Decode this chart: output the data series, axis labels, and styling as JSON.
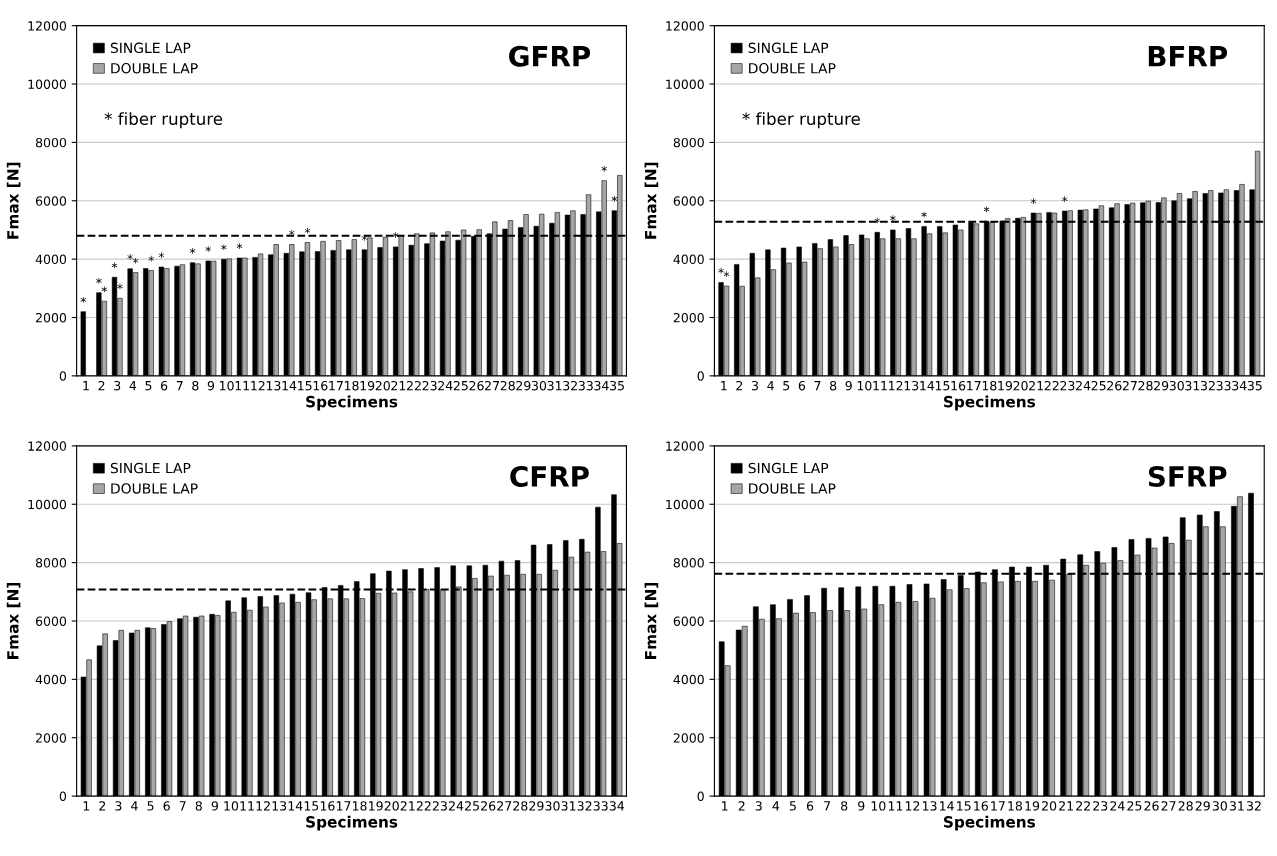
{
  "chart_data": [
    {
      "type": "bar",
      "title": "GFRP",
      "xlabel": "Specimens",
      "ylabel": "Fmax [N]",
      "categories": [
        "1",
        "2",
        "3",
        "4",
        "5",
        "6",
        "7",
        "8",
        "9",
        "10",
        "11",
        "12",
        "13",
        "14",
        "15",
        "16",
        "17",
        "18",
        "19",
        "20",
        "21",
        "22",
        "23",
        "24",
        "25",
        "26",
        "27",
        "28",
        "29",
        "30",
        "31",
        "32",
        "33",
        "34",
        "35"
      ],
      "series": [
        {
          "name": "SINGLE LAP",
          "color": "#000000",
          "values": [
            2200,
            2850,
            3380,
            3670,
            3680,
            3730,
            3760,
            3880,
            3940,
            4000,
            4040,
            4060,
            4150,
            4200,
            4250,
            4260,
            4300,
            4320,
            4320,
            4400,
            4420,
            4480,
            4530,
            4620,
            4650,
            4780,
            4870,
            5030,
            5080,
            5130,
            5230,
            5510,
            5530,
            5620,
            5660
          ]
        },
        {
          "name": "DOUBLE LAP",
          "color": "#a6a6a6",
          "values": [
            null,
            2560,
            2660,
            3540,
            3610,
            3680,
            3810,
            3840,
            3930,
            4010,
            4040,
            4180,
            4500,
            4500,
            4570,
            4610,
            4640,
            4670,
            4730,
            4750,
            4810,
            4870,
            4900,
            4940,
            5000,
            5010,
            5280,
            5320,
            5530,
            5540,
            5600,
            5660,
            6210,
            6690,
            6870
          ]
        }
      ],
      "ylim": [
        0,
        12000
      ],
      "yticks": [
        0,
        2000,
        4000,
        6000,
        8000,
        10000,
        12000
      ],
      "grid": "y",
      "legend": "top left",
      "ref_lines": [
        {
          "axis": "y",
          "value": 4800,
          "line_style": "dashed",
          "color": "#000000"
        }
      ],
      "annotations": [
        "* fiber rupture",
        {
          "text": "*",
          "x": "1",
          "y": 2200
        },
        {
          "text": "*",
          "x": "2",
          "y": 2850
        },
        {
          "text": "*",
          "x": "3",
          "y": 3380
        },
        {
          "text": "*",
          "x": "4",
          "y": 3670
        },
        {
          "text": "*",
          "x": "6",
          "y": 3730
        },
        {
          "text": "*",
          "x": "8",
          "y": 3880
        },
        {
          "text": "*",
          "x": "9",
          "y": 3940
        },
        {
          "text": "*",
          "x": "10",
          "y": 4000
        },
        {
          "text": "*",
          "x": "11",
          "y": 4040
        },
        {
          "text": "*",
          "x": "19",
          "y": 4320
        },
        {
          "text": "*",
          "x": "21",
          "y": 4420
        },
        {
          "text": "*",
          "x": "35",
          "y": 5660
        },
        {
          "text": "*",
          "x": "2",
          "y": 2560
        },
        {
          "text": "*",
          "x": "3",
          "y": 2660
        },
        {
          "text": "*",
          "x": "4",
          "y": 3540
        },
        {
          "text": "*",
          "x": "5",
          "y": 3610
        },
        {
          "text": "*",
          "x": "14",
          "y": 4500
        },
        {
          "text": "*",
          "x": "15",
          "y": 4570
        },
        {
          "text": "*",
          "x": "34",
          "y": 6690
        }
      ]
    },
    {
      "type": "bar",
      "title": "BFRP",
      "xlabel": "Specimens",
      "ylabel": "Fmax [N]",
      "categories": [
        "1",
        "2",
        "3",
        "4",
        "5",
        "6",
        "7",
        "8",
        "9",
        "10",
        "11",
        "12",
        "13",
        "14",
        "15",
        "16",
        "17",
        "18",
        "19",
        "20",
        "21",
        "22",
        "23",
        "24",
        "25",
        "26",
        "27",
        "28",
        "29",
        "30",
        "31",
        "32",
        "33",
        "34",
        "35"
      ],
      "series": [
        {
          "name": "SINGLE LAP",
          "color": "#000000",
          "values": [
            3200,
            3820,
            4200,
            4320,
            4380,
            4420,
            4540,
            4670,
            4810,
            4830,
            4920,
            5000,
            5050,
            5120,
            5120,
            5170,
            5250,
            5300,
            5310,
            5400,
            5580,
            5600,
            5650,
            5680,
            5720,
            5760,
            5870,
            5930,
            5940,
            6000,
            6070,
            6250,
            6270,
            6350,
            6380
          ]
        },
        {
          "name": "DOUBLE LAP",
          "color": "#a6a6a6",
          "values": [
            3080,
            3070,
            3360,
            3640,
            3870,
            3900,
            4360,
            4420,
            4500,
            4700,
            4700,
            4700,
            4700,
            4870,
            4900,
            5000,
            5210,
            5260,
            5390,
            5430,
            5570,
            5580,
            5660,
            5690,
            5830,
            5900,
            5920,
            5990,
            6100,
            6250,
            6320,
            6350,
            6380,
            6560,
            7700
          ]
        }
      ],
      "ylim": [
        0,
        12000
      ],
      "yticks": [
        0,
        2000,
        4000,
        6000,
        8000,
        10000,
        12000
      ],
      "grid": "y",
      "legend": "top left",
      "ref_lines": [
        {
          "axis": "y",
          "value": 5280,
          "line_style": "dashed",
          "color": "#000000"
        }
      ],
      "annotations": [
        "* fiber rupture",
        {
          "text": "*",
          "x": "1",
          "y": 3200
        },
        {
          "text": "*",
          "x": "11",
          "y": 4920
        },
        {
          "text": "*",
          "x": "12",
          "y": 5000
        },
        {
          "text": "*",
          "x": "14",
          "y": 5120
        },
        {
          "text": "*",
          "x": "18",
          "y": 5300
        },
        {
          "text": "*",
          "x": "21",
          "y": 5580
        },
        {
          "text": "*",
          "x": "23",
          "y": 5650
        },
        {
          "text": "*",
          "x": "1",
          "y": 3080
        }
      ]
    },
    {
      "type": "bar",
      "title": "CFRP",
      "xlabel": "Specimens",
      "ylabel": "Fmax [N]",
      "categories": [
        "1",
        "2",
        "3",
        "4",
        "5",
        "6",
        "7",
        "8",
        "9",
        "10",
        "11",
        "12",
        "13",
        "14",
        "15",
        "16",
        "17",
        "18",
        "19",
        "20",
        "21",
        "22",
        "23",
        "24",
        "25",
        "26",
        "27",
        "28",
        "29",
        "30",
        "31",
        "32",
        "33",
        "34"
      ],
      "series": [
        {
          "name": "SINGLE LAP",
          "color": "#000000",
          "values": [
            4080,
            5150,
            5330,
            5590,
            5770,
            5880,
            6080,
            6130,
            6230,
            6690,
            6800,
            6840,
            6870,
            6920,
            6970,
            7150,
            7220,
            7350,
            7620,
            7710,
            7760,
            7800,
            7830,
            7890,
            7890,
            7910,
            8050,
            8070,
            8600,
            8620,
            8760,
            8800,
            9900,
            10330
          ]
        },
        {
          "name": "DOUBLE LAP",
          "color": "#a6a6a6",
          "values": [
            4670,
            5560,
            5680,
            5680,
            5740,
            5980,
            6170,
            6170,
            6190,
            6300,
            6370,
            6480,
            6620,
            6640,
            6730,
            6760,
            6760,
            6770,
            6950,
            6960,
            7000,
            7080,
            7080,
            7170,
            7460,
            7540,
            7570,
            7600,
            7600,
            7740,
            8190,
            8360,
            8380,
            8660
          ]
        }
      ],
      "ylim": [
        0,
        12000
      ],
      "yticks": [
        0,
        2000,
        4000,
        6000,
        8000,
        10000,
        12000
      ],
      "grid": "y",
      "legend": "top left",
      "ref_lines": [
        {
          "axis": "y",
          "value": 7080,
          "line_style": "dashed",
          "color": "#000000"
        }
      ]
    },
    {
      "type": "bar",
      "title": "SFRP",
      "xlabel": "Specimens",
      "ylabel": "Fmax [N]",
      "categories": [
        "1",
        "2",
        "3",
        "4",
        "5",
        "6",
        "7",
        "8",
        "9",
        "10",
        "11",
        "12",
        "13",
        "14",
        "15",
        "16",
        "17",
        "18",
        "19",
        "20",
        "21",
        "22",
        "23",
        "24",
        "25",
        "26",
        "27",
        "28",
        "29",
        "30",
        "31",
        "32"
      ],
      "series": [
        {
          "name": "SINGLE LAP",
          "color": "#000000",
          "values": [
            5290,
            5690,
            6490,
            6560,
            6740,
            6870,
            7120,
            7140,
            7170,
            7190,
            7190,
            7250,
            7270,
            7420,
            7560,
            7680,
            7760,
            7850,
            7850,
            7910,
            8120,
            8270,
            8380,
            8520,
            8790,
            8830,
            8880,
            9540,
            9630,
            9750,
            9930,
            10380
          ]
        },
        {
          "name": "DOUBLE LAP",
          "color": "#a6a6a6",
          "values": [
            4470,
            5820,
            6060,
            6080,
            6270,
            6290,
            6360,
            6360,
            6410,
            6560,
            6640,
            6670,
            6780,
            7070,
            7110,
            7310,
            7340,
            7360,
            7360,
            7400,
            7600,
            7910,
            7980,
            8070,
            8260,
            8500,
            8660,
            8770,
            9230,
            9230,
            10260,
            null
          ]
        }
      ],
      "ylim": [
        0,
        12000
      ],
      "yticks": [
        0,
        2000,
        4000,
        6000,
        8000,
        10000,
        12000
      ],
      "grid": "y",
      "legend": "top left",
      "ref_lines": [
        {
          "axis": "y",
          "value": 7620,
          "line_style": "dashed",
          "color": "#000000"
        }
      ]
    }
  ]
}
